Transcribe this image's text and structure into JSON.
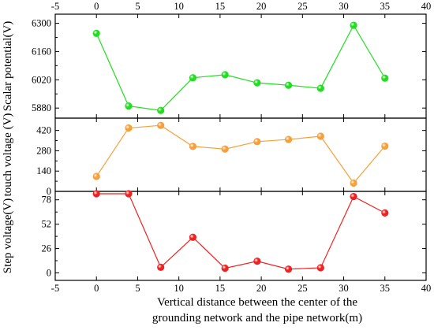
{
  "chart_data": {
    "type": "line",
    "layout": "stacked-panels-shared-x",
    "x": [
      0,
      3.9,
      7.8,
      11.7,
      15.6,
      19.5,
      23.3,
      27.2,
      31.2,
      35.0
    ],
    "x_ticks": [
      -5,
      0,
      5,
      10,
      15,
      20,
      25,
      30,
      35,
      40
    ],
    "xlim": [
      -5,
      40
    ],
    "xlabel_line1": "Vertical distance between the center of the",
    "xlabel_line2": "grounding network and the pipe network(m)",
    "panels": [
      {
        "name": "scalar",
        "ylabel": "Scalar potential(V)",
        "ylim": [
          5830,
          6345
        ],
        "yticks": [
          5880,
          6020,
          6160,
          6300
        ],
        "color": "#22dd22",
        "values": [
          6250,
          5890,
          5868,
          6030,
          6045,
          6005,
          5993,
          5978,
          6290,
          6028
        ]
      },
      {
        "name": "touch",
        "ylabel": "touch voltage (V)",
        "ylim": [
          0,
          505
        ],
        "yticks": [
          0,
          140,
          280,
          420
        ],
        "color": "#f5a03a",
        "values": [
          103,
          437,
          455,
          310,
          292,
          343,
          358,
          380,
          57,
          312
        ]
      },
      {
        "name": "step",
        "ylabel": "Step voltage(V)",
        "ylim": [
          -8,
          87
        ],
        "yticks": [
          0,
          26,
          52,
          78
        ],
        "color": "#ee2222",
        "values": [
          84.5,
          84.5,
          6,
          38,
          5,
          12.5,
          4,
          5.5,
          81.5,
          64
        ]
      }
    ],
    "grid": false,
    "legend": "none"
  }
}
